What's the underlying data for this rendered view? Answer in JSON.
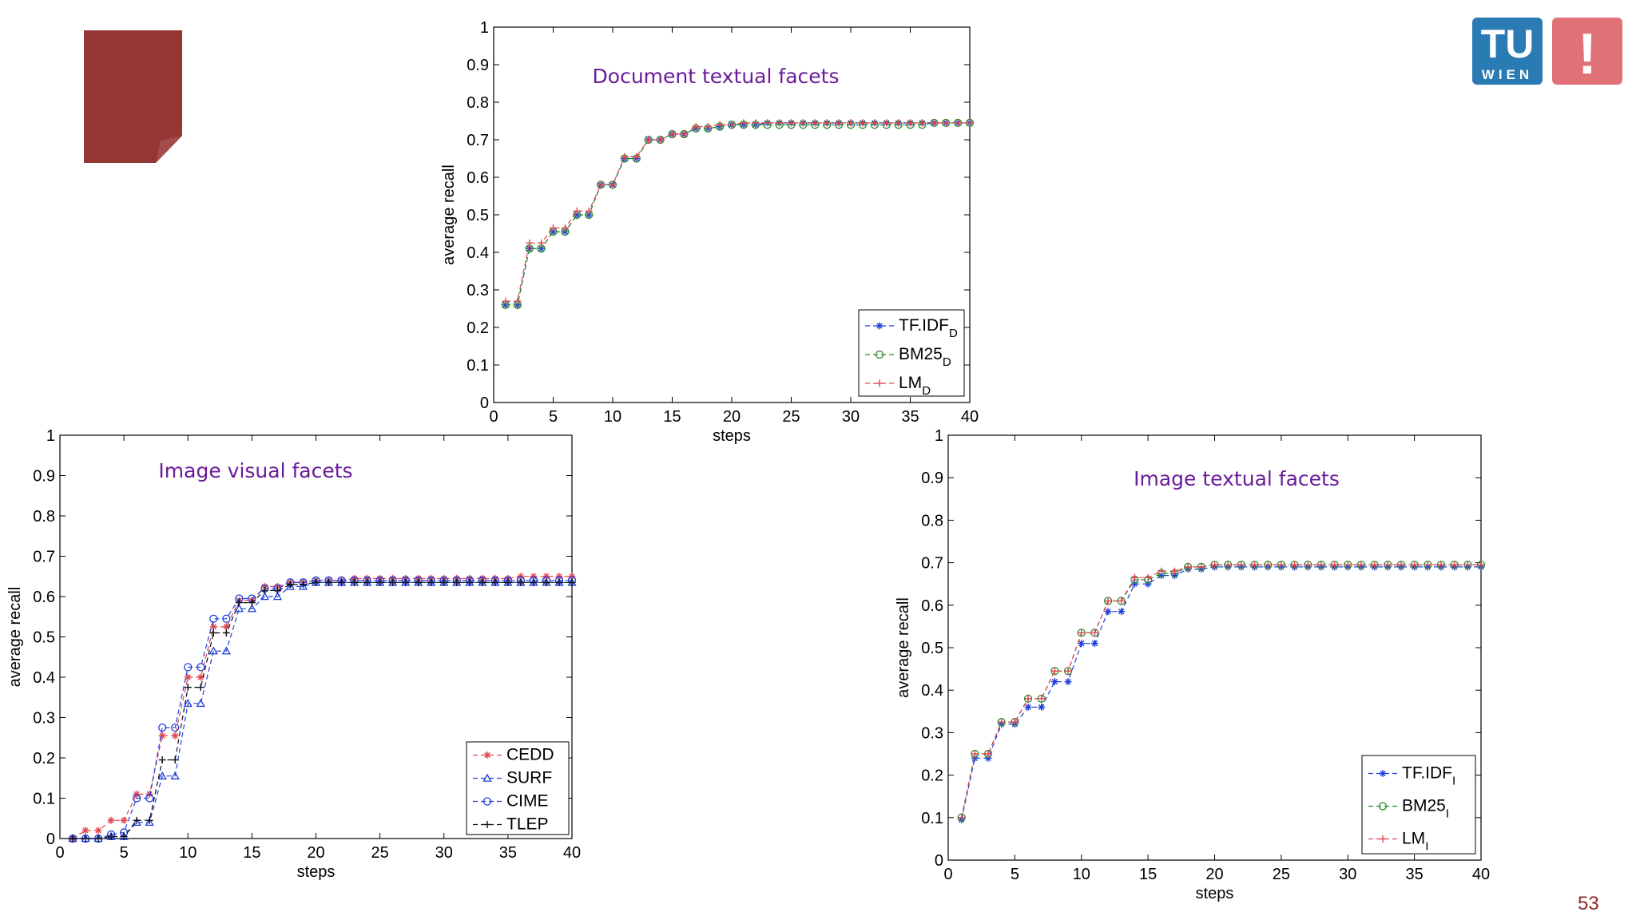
{
  "slide": {
    "page_number": "53",
    "logo": {
      "left_text": "TU",
      "sub_text": "WIEN",
      "right_mark": "!",
      "blue": "#2a7ab3",
      "red": "#e07277"
    },
    "doc_icon": {
      "name": "page-icon",
      "color": "#943634"
    }
  },
  "chart_data": [
    {
      "type": "line",
      "title": "Document textual facets",
      "xlabel": "steps",
      "ylabel": "average recall",
      "xlim": [
        0,
        40
      ],
      "ylim": [
        0,
        1
      ],
      "xticks": [
        0,
        5,
        10,
        15,
        20,
        25,
        30,
        35,
        40
      ],
      "yticks": [
        0,
        0.1,
        0.2,
        0.3,
        0.4,
        0.5,
        0.6,
        0.7,
        0.8,
        0.9,
        1
      ],
      "grid": false,
      "legend_position": "bottom-right",
      "x": [
        1,
        2,
        3,
        4,
        5,
        6,
        7,
        8,
        9,
        10,
        11,
        12,
        13,
        14,
        15,
        16,
        17,
        18,
        19,
        20,
        21,
        22,
        23,
        24,
        25,
        26,
        27,
        28,
        29,
        30,
        31,
        32,
        33,
        34,
        35,
        36,
        37,
        38,
        39,
        40
      ],
      "series": [
        {
          "name": "TF.IDF",
          "sub": "D",
          "color": "#1f3fdc",
          "marker": "star",
          "values": [
            0.26,
            0.26,
            0.41,
            0.41,
            0.455,
            0.455,
            0.5,
            0.5,
            0.58,
            0.58,
            0.65,
            0.65,
            0.7,
            0.7,
            0.715,
            0.715,
            0.73,
            0.73,
            0.735,
            0.74,
            0.74,
            0.74,
            0.745,
            0.745,
            0.745,
            0.745,
            0.745,
            0.745,
            0.745,
            0.745,
            0.745,
            0.745,
            0.745,
            0.745,
            0.745,
            0.745,
            0.745,
            0.745,
            0.745,
            0.745
          ]
        },
        {
          "name": "BM25",
          "sub": "D",
          "color": "#2e8b2e",
          "marker": "circle",
          "values": [
            0.26,
            0.26,
            0.41,
            0.41,
            0.455,
            0.455,
            0.5,
            0.5,
            0.58,
            0.58,
            0.65,
            0.65,
            0.7,
            0.7,
            0.715,
            0.715,
            0.73,
            0.73,
            0.735,
            0.74,
            0.74,
            0.74,
            0.74,
            0.74,
            0.74,
            0.74,
            0.74,
            0.74,
            0.74,
            0.74,
            0.74,
            0.74,
            0.74,
            0.74,
            0.74,
            0.74,
            0.745,
            0.745,
            0.745,
            0.745
          ]
        },
        {
          "name": "LM",
          "sub": "D",
          "color": "#e0454f",
          "marker": "plus",
          "values": [
            0.27,
            0.27,
            0.425,
            0.425,
            0.465,
            0.465,
            0.51,
            0.51,
            0.58,
            0.58,
            0.655,
            0.655,
            0.7,
            0.7,
            0.715,
            0.715,
            0.735,
            0.735,
            0.74,
            0.74,
            0.745,
            0.745,
            0.745,
            0.745,
            0.745,
            0.745,
            0.745,
            0.745,
            0.745,
            0.745,
            0.745,
            0.745,
            0.745,
            0.745,
            0.745,
            0.745,
            0.745,
            0.745,
            0.745,
            0.745
          ]
        }
      ]
    },
    {
      "type": "line",
      "title": "Image visual facets",
      "xlabel": "steps",
      "ylabel": "average recall",
      "xlim": [
        0,
        40
      ],
      "ylim": [
        0,
        1
      ],
      "xticks": [
        0,
        5,
        10,
        15,
        20,
        25,
        30,
        35,
        40
      ],
      "yticks": [
        0,
        0.1,
        0.2,
        0.3,
        0.4,
        0.5,
        0.6,
        0.7,
        0.8,
        0.9,
        1
      ],
      "grid": false,
      "legend_position": "bottom-right",
      "x": [
        1,
        2,
        3,
        4,
        5,
        6,
        7,
        8,
        9,
        10,
        11,
        12,
        13,
        14,
        15,
        16,
        17,
        18,
        19,
        20,
        21,
        22,
        23,
        24,
        25,
        26,
        27,
        28,
        29,
        30,
        31,
        32,
        33,
        34,
        35,
        36,
        37,
        38,
        39,
        40
      ],
      "series": [
        {
          "name": "CEDD",
          "sub": "",
          "color": "#e0454f",
          "marker": "star",
          "values": [
            0,
            0.02,
            0.02,
            0.045,
            0.045,
            0.11,
            0.11,
            0.255,
            0.255,
            0.4,
            0.4,
            0.525,
            0.525,
            0.59,
            0.59,
            0.625,
            0.625,
            0.635,
            0.635,
            0.64,
            0.64,
            0.64,
            0.645,
            0.645,
            0.645,
            0.645,
            0.645,
            0.645,
            0.645,
            0.645,
            0.645,
            0.645,
            0.645,
            0.645,
            0.645,
            0.65,
            0.65,
            0.65,
            0.65,
            0.65
          ]
        },
        {
          "name": "SURF",
          "sub": "",
          "color": "#1f3fdc",
          "marker": "triangle",
          "values": [
            0,
            0,
            0,
            0.005,
            0.005,
            0.04,
            0.04,
            0.155,
            0.155,
            0.335,
            0.335,
            0.465,
            0.465,
            0.57,
            0.57,
            0.6,
            0.6,
            0.625,
            0.625,
            0.635,
            0.635,
            0.635,
            0.635,
            0.635,
            0.635,
            0.635,
            0.635,
            0.635,
            0.635,
            0.635,
            0.635,
            0.635,
            0.635,
            0.635,
            0.635,
            0.635,
            0.635,
            0.635,
            0.635,
            0.635
          ]
        },
        {
          "name": "CIME",
          "sub": "",
          "color": "#1f3fdc",
          "marker": "circle",
          "values": [
            0,
            0,
            0,
            0.01,
            0.015,
            0.1,
            0.1,
            0.275,
            0.275,
            0.425,
            0.425,
            0.545,
            0.545,
            0.595,
            0.595,
            0.62,
            0.62,
            0.635,
            0.635,
            0.64,
            0.64,
            0.64,
            0.64,
            0.64,
            0.64,
            0.64,
            0.64,
            0.64,
            0.64,
            0.64,
            0.64,
            0.64,
            0.64,
            0.64,
            0.64,
            0.64,
            0.64,
            0.64,
            0.64,
            0.64
          ]
        },
        {
          "name": "TLEP",
          "sub": "",
          "color": "#111111",
          "marker": "plus",
          "values": [
            0,
            0,
            0,
            0.005,
            0.005,
            0.045,
            0.045,
            0.195,
            0.195,
            0.375,
            0.375,
            0.51,
            0.51,
            0.585,
            0.585,
            0.615,
            0.615,
            0.63,
            0.63,
            0.635,
            0.635,
            0.635,
            0.635,
            0.635,
            0.635,
            0.635,
            0.635,
            0.635,
            0.635,
            0.635,
            0.635,
            0.635,
            0.635,
            0.635,
            0.635,
            0.635,
            0.635,
            0.635,
            0.635,
            0.635
          ]
        }
      ]
    },
    {
      "type": "line",
      "title": "Image textual facets",
      "xlabel": "steps",
      "ylabel": "average recall",
      "xlim": [
        0,
        40
      ],
      "ylim": [
        0,
        1
      ],
      "xticks": [
        0,
        5,
        10,
        15,
        20,
        25,
        30,
        35,
        40
      ],
      "yticks": [
        0,
        0.1,
        0.2,
        0.3,
        0.4,
        0.5,
        0.6,
        0.7,
        0.8,
        0.9,
        1
      ],
      "grid": false,
      "legend_position": "bottom-right",
      "x": [
        1,
        2,
        3,
        4,
        5,
        6,
        7,
        8,
        9,
        10,
        11,
        12,
        13,
        14,
        15,
        16,
        17,
        18,
        19,
        20,
        21,
        22,
        23,
        24,
        25,
        26,
        27,
        28,
        29,
        30,
        31,
        32,
        33,
        34,
        35,
        36,
        37,
        38,
        39,
        40
      ],
      "series": [
        {
          "name": "TF.IDF",
          "sub": "I",
          "color": "#1f3fdc",
          "marker": "star",
          "values": [
            0.095,
            0.24,
            0.24,
            0.32,
            0.32,
            0.36,
            0.36,
            0.42,
            0.42,
            0.51,
            0.51,
            0.585,
            0.585,
            0.65,
            0.65,
            0.67,
            0.67,
            0.685,
            0.685,
            0.69,
            0.69,
            0.69,
            0.69,
            0.69,
            0.69,
            0.69,
            0.69,
            0.69,
            0.69,
            0.69,
            0.69,
            0.69,
            0.69,
            0.69,
            0.69,
            0.69,
            0.69,
            0.69,
            0.69,
            0.69
          ]
        },
        {
          "name": "BM25",
          "sub": "I",
          "color": "#2e8b2e",
          "marker": "circle",
          "values": [
            0.1,
            0.25,
            0.25,
            0.325,
            0.325,
            0.38,
            0.38,
            0.445,
            0.445,
            0.535,
            0.535,
            0.61,
            0.61,
            0.66,
            0.66,
            0.675,
            0.675,
            0.69,
            0.69,
            0.695,
            0.695,
            0.695,
            0.695,
            0.695,
            0.695,
            0.695,
            0.695,
            0.695,
            0.695,
            0.695,
            0.695,
            0.695,
            0.695,
            0.695,
            0.695,
            0.695,
            0.695,
            0.695,
            0.695,
            0.695
          ]
        },
        {
          "name": "LM",
          "sub": "I",
          "color": "#e0454f",
          "marker": "plus",
          "values": [
            0.1,
            0.25,
            0.25,
            0.325,
            0.325,
            0.38,
            0.38,
            0.445,
            0.445,
            0.535,
            0.535,
            0.61,
            0.61,
            0.665,
            0.665,
            0.68,
            0.68,
            0.69,
            0.69,
            0.695,
            0.695,
            0.695,
            0.695,
            0.695,
            0.695,
            0.695,
            0.695,
            0.695,
            0.695,
            0.695,
            0.695,
            0.695,
            0.695,
            0.695,
            0.695,
            0.695,
            0.695,
            0.695,
            0.695,
            0.695
          ]
        }
      ]
    }
  ]
}
